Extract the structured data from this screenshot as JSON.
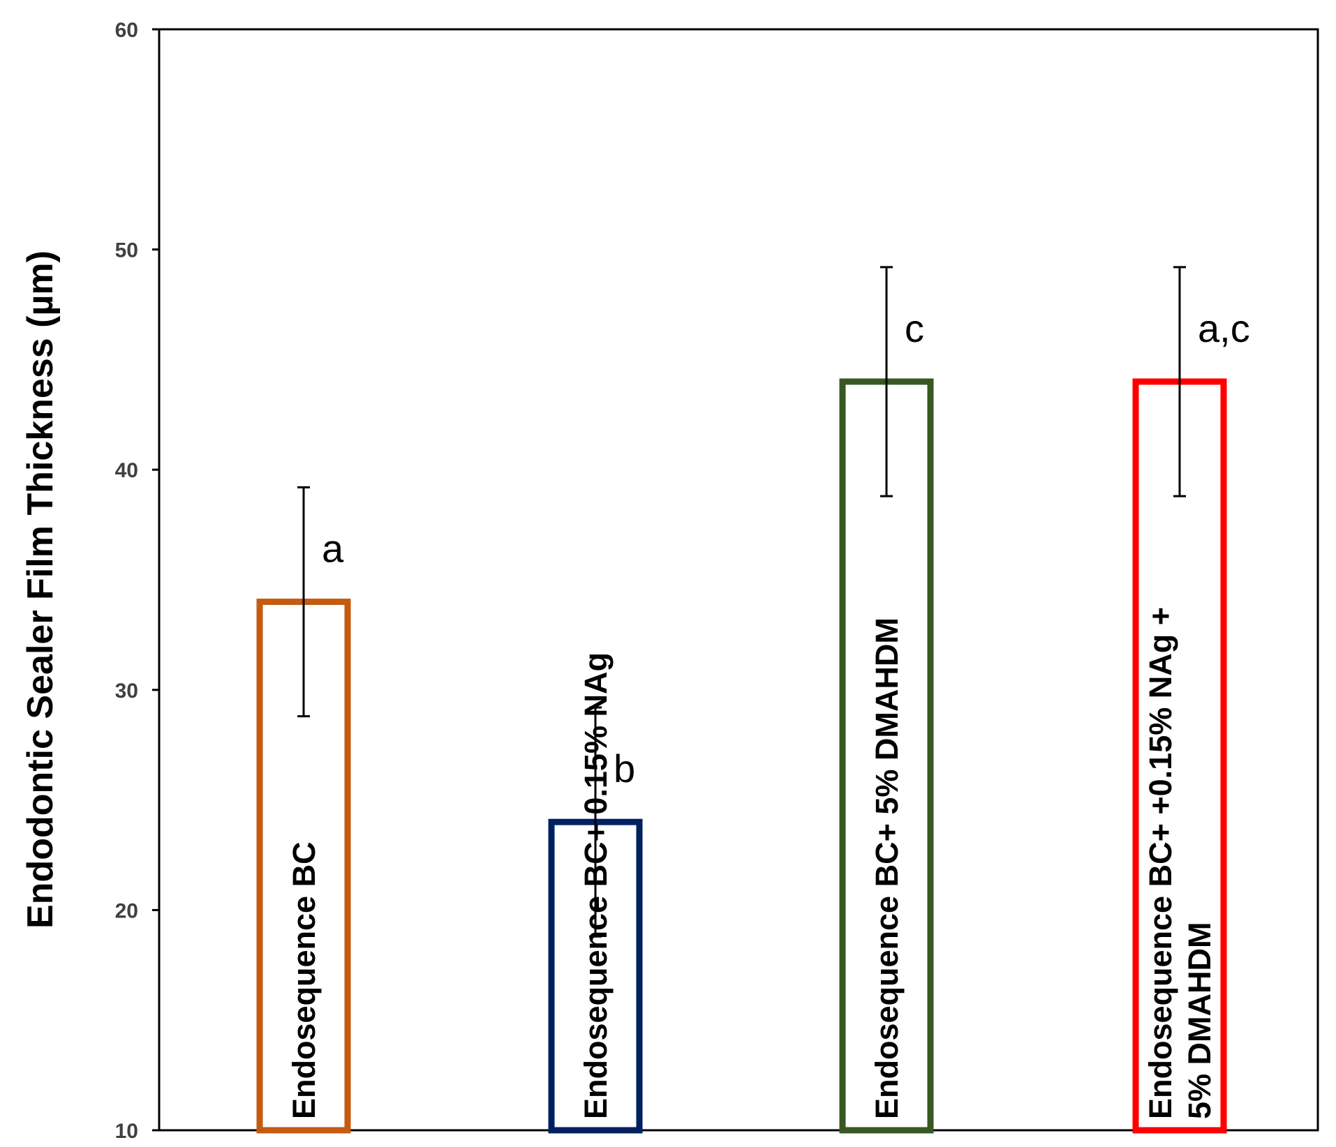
{
  "chart_data": {
    "type": "bar",
    "title": "",
    "xlabel": "",
    "ylabel": "Endodontic Sealer Film Thickness  (µm)",
    "ylim": [
      10,
      60
    ],
    "yticks": [
      10,
      20,
      30,
      40,
      50,
      60
    ],
    "grid": false,
    "legend": "none",
    "bar_fill": "none",
    "categories": [
      [
        "Endosequence BC"
      ],
      [
        "Endosequence BC+ 0.15% NAg"
      ],
      [
        "Endosequence BC+ 5% DMAHDM"
      ],
      [
        "Endosequence BC+ +0.15% NAg +",
        "5% DMAHDM"
      ]
    ],
    "values": [
      34,
      24,
      44,
      44
    ],
    "error": [
      5.2,
      5.2,
      5.2,
      5.2
    ],
    "significance": [
      "a",
      "b",
      "c",
      "a,c"
    ],
    "colors": [
      "#c55a11",
      "#002060",
      "#385723",
      "#ff0000"
    ]
  }
}
